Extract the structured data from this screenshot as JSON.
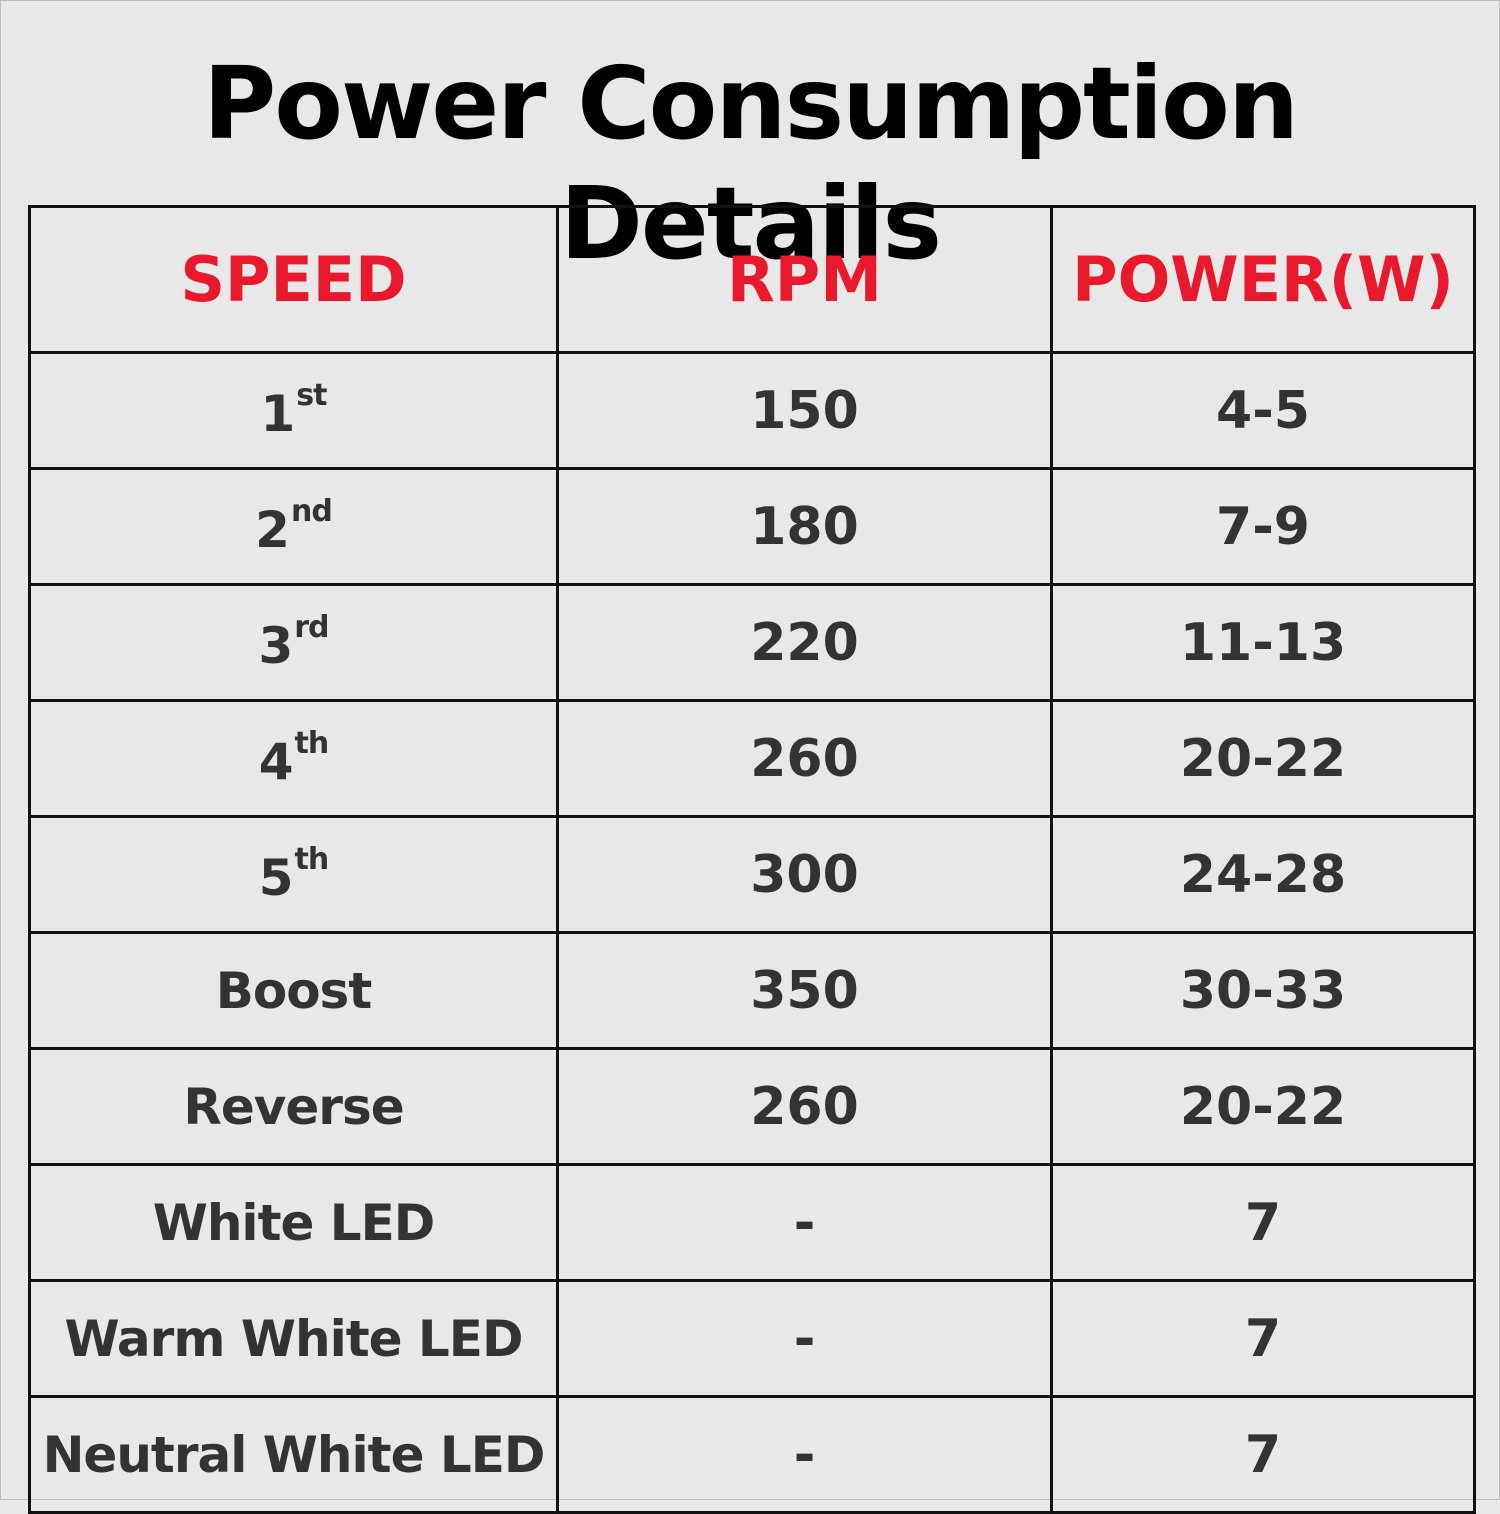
{
  "title": "Power Consumption Details",
  "colors": {
    "background": "#e8e8e8",
    "header_text": "#e8192c",
    "body_text": "#333333",
    "border": "#111111"
  },
  "table": {
    "headers": [
      "SPEED",
      "RPM",
      "POWER(W)"
    ],
    "rows": [
      {
        "speed": "1",
        "suffix": "st",
        "rpm": "150",
        "power": "4-5"
      },
      {
        "speed": "2",
        "suffix": "nd",
        "rpm": "180",
        "power": "7-9"
      },
      {
        "speed": "3",
        "suffix": "rd",
        "rpm": "220",
        "power": "11-13"
      },
      {
        "speed": "4",
        "suffix": "th",
        "rpm": "260",
        "power": "20-22"
      },
      {
        "speed": "5",
        "suffix": "th",
        "rpm": "300",
        "power": "24-28"
      },
      {
        "speed": "Boost",
        "rpm": "350",
        "power": "30-33"
      },
      {
        "speed": "Reverse",
        "rpm": "260",
        "power": "20-22"
      },
      {
        "speed": "White LED",
        "rpm": "-",
        "power": "7"
      },
      {
        "speed": "Warm White LED",
        "rpm": "-",
        "power": "7"
      },
      {
        "speed": "Neutral White LED",
        "rpm": "-",
        "power": "7"
      }
    ]
  }
}
